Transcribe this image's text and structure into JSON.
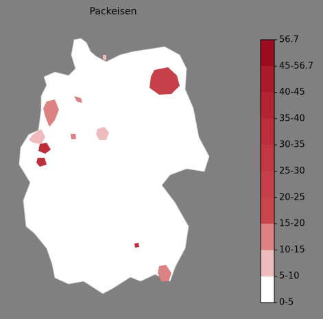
{
  "title": "Packeisen",
  "colorbar": {
    "labels": [
      "0-5",
      "5-10",
      "10-15",
      "15-20",
      "20-25",
      "25-30",
      "30-35",
      "35-40",
      "40-45",
      "45-56.7",
      "56.7"
    ],
    "colors": [
      "#ffffff",
      "#eebcbc",
      "#dc8282",
      "#c9474c",
      "#c6404a",
      "#c13843",
      "#bb2e3a",
      "#b42533",
      "#aa1a2a",
      "#9c0c20"
    ]
  }
}
